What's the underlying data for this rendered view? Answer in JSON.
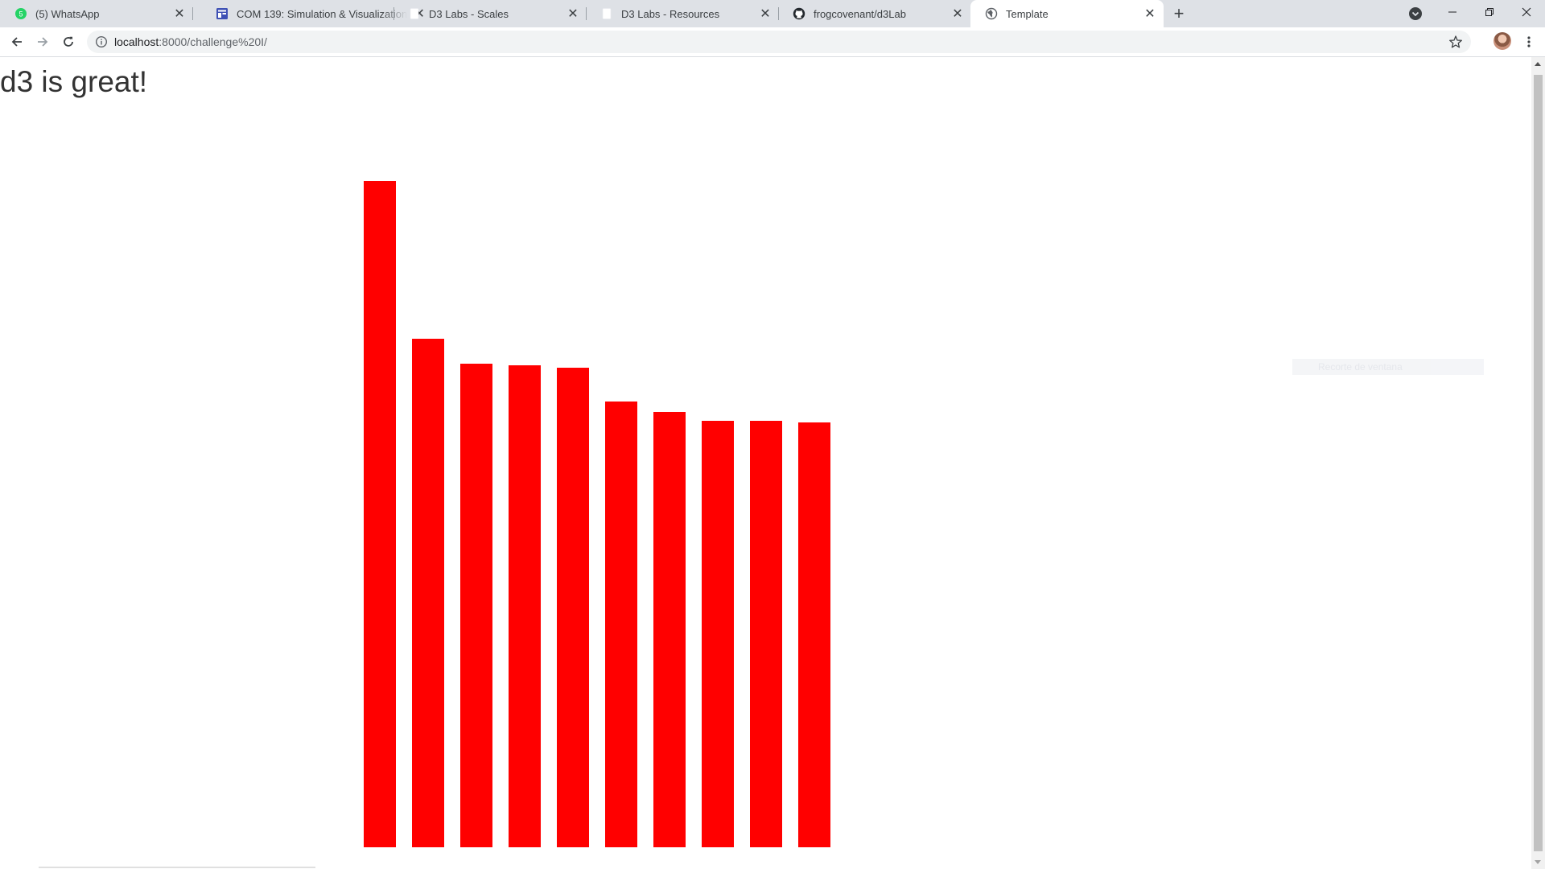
{
  "browser": {
    "tabs": [
      {
        "title": "(5) WhatsApp",
        "icon": "whatsapp-icon",
        "icon_color": "#25d366",
        "active": false
      },
      {
        "title": "COM 139: Simulation & Visualization",
        "icon": "course-site-icon",
        "icon_color": "#3f51b5",
        "active": false
      },
      {
        "title": "D3 Labs - Scales",
        "icon": "blank-page-icon",
        "icon_color": "#ffffff",
        "active": false
      },
      {
        "title": "D3 Labs - Resources",
        "icon": "blank-page-icon",
        "icon_color": "#ffffff",
        "active": false
      },
      {
        "title": "frogcovenant/d3Lab",
        "icon": "github-icon",
        "icon_color": "#24292e",
        "active": false
      },
      {
        "title": "Template",
        "icon": "globe-icon",
        "icon_color": "#5f6368",
        "active": true
      }
    ],
    "new_tab_glyph": "+",
    "close_glyph": "✕",
    "address": {
      "host": "localhost",
      "path": ":8000/challenge%20I/"
    }
  },
  "page": {
    "heading": "d3 is great!",
    "bar_color": "#ff0000",
    "ghost_tooltip": "Recorte de ventana"
  },
  "chart_data": {
    "type": "bar",
    "values": [
      828,
      632,
      601,
      599,
      596,
      554,
      541,
      530,
      530,
      528
    ],
    "ylim": [
      0,
      828
    ],
    "bar_color": "#ff0000",
    "grid": false
  }
}
